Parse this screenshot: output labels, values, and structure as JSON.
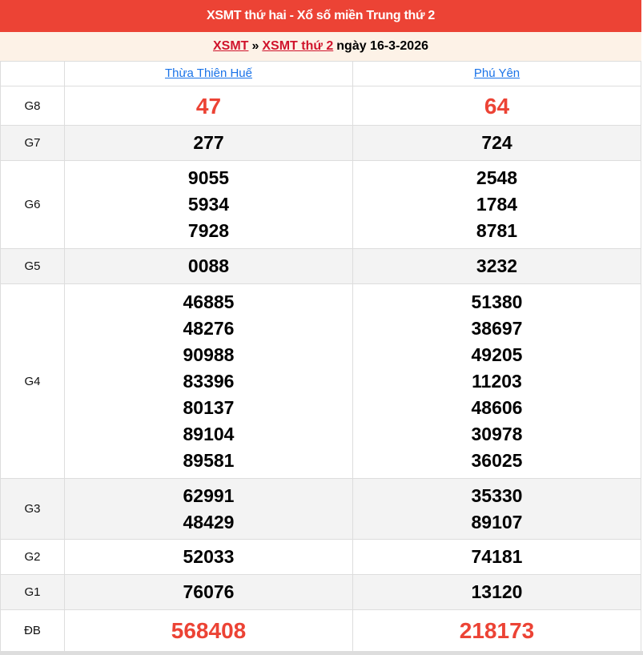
{
  "header": {
    "title": "XSMT thứ hai - Xổ số miền Trung thứ 2"
  },
  "breadcrumb": {
    "link1": "XSMT",
    "sep": "»",
    "link2": "XSMT thứ 2",
    "date_text": "ngày 16-3-2026"
  },
  "provinces": [
    "Thừa Thiên Huế",
    "Phú Yên"
  ],
  "rows": [
    {
      "label": "G8",
      "a": [
        "47"
      ],
      "b": [
        "64"
      ],
      "highlight": true
    },
    {
      "label": "G7",
      "a": [
        "277"
      ],
      "b": [
        "724"
      ]
    },
    {
      "label": "G6",
      "a": [
        "9055",
        "5934",
        "7928"
      ],
      "b": [
        "2548",
        "1784",
        "8781"
      ]
    },
    {
      "label": "G5",
      "a": [
        "0088"
      ],
      "b": [
        "3232"
      ]
    },
    {
      "label": "G4",
      "a": [
        "46885",
        "48276",
        "90988",
        "83396",
        "80137",
        "89104",
        "89581"
      ],
      "b": [
        "51380",
        "38697",
        "49205",
        "11203",
        "48606",
        "30978",
        "36025"
      ]
    },
    {
      "label": "G3",
      "a": [
        "62991",
        "48429"
      ],
      "b": [
        "35330",
        "89107"
      ]
    },
    {
      "label": "G2",
      "a": [
        "52033"
      ],
      "b": [
        "74181"
      ]
    },
    {
      "label": "G1",
      "a": [
        "76076"
      ],
      "b": [
        "13120"
      ]
    },
    {
      "label": "ĐB",
      "a": [
        "568408"
      ],
      "b": [
        "218173"
      ],
      "highlight": true
    }
  ],
  "colors": {
    "accent": "#ec4335",
    "link": "#1a73e8",
    "breadcrumb_link": "#d0142c"
  }
}
